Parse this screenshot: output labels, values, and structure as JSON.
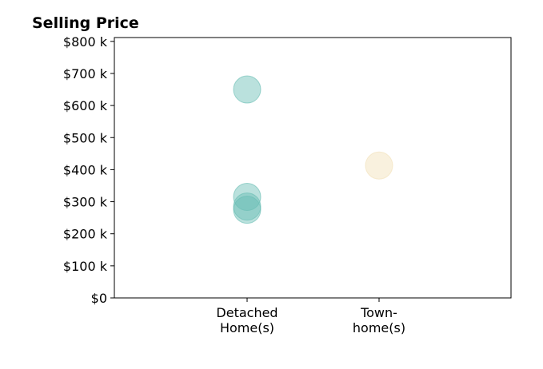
{
  "chart_data": {
    "type": "scatter",
    "title": "Selling Price",
    "xlabel": "",
    "ylabel": "",
    "categories": [
      [
        "Detached",
        "Home(s)"
      ],
      [
        "Town-",
        "home(s)"
      ]
    ],
    "ylim": [
      0,
      812000
    ],
    "yticks": [
      {
        "value": 0,
        "label": "$0"
      },
      {
        "value": 100000,
        "label": "$100 k"
      },
      {
        "value": 200000,
        "label": "$200 k"
      },
      {
        "value": 300000,
        "label": "$300 k"
      },
      {
        "value": 400000,
        "label": "$400 k"
      },
      {
        "value": 500000,
        "label": "$500 k"
      },
      {
        "value": 600000,
        "label": "$600 k"
      },
      {
        "value": 700000,
        "label": "$700 k"
      },
      {
        "value": 800000,
        "label": "$800 k"
      }
    ],
    "grid": false,
    "legend": "none",
    "series": [
      {
        "category_index": 0,
        "color": "#66bdb3",
        "values": [
          650000,
          315000,
          285000,
          275000
        ]
      },
      {
        "category_index": 1,
        "color": "#f2dfb5",
        "values": [
          413000
        ]
      }
    ]
  }
}
